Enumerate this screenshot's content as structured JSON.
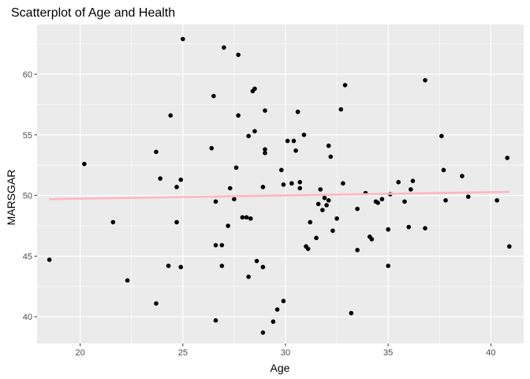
{
  "chart_data": {
    "type": "scatter",
    "title": "Scatterplot of Age and Health",
    "xlabel": "Age",
    "ylabel": "MARSGAR",
    "xlim": [
      17.9,
      41.6
    ],
    "ylim": [
      37.8,
      64.1
    ],
    "x_ticks": [
      20,
      25,
      30,
      35,
      40
    ],
    "y_ticks": [
      40,
      45,
      50,
      55,
      60
    ],
    "x_minor_ticks": [
      17.5,
      22.5,
      27.5,
      32.5,
      37.5
    ],
    "y_minor_ticks": [
      42.5,
      47.5,
      52.5,
      57.5,
      62.5
    ],
    "grid": true,
    "legend": "none",
    "colors": {
      "panel": "#ebebeb",
      "grid": "#ffffff",
      "point": "#000000",
      "trend": "#ffb6c1",
      "tick": "#333333"
    },
    "trend_line": {
      "x": [
        18.5,
        40.9
      ],
      "y": [
        49.7,
        50.3
      ]
    },
    "points": [
      {
        "x": 18.5,
        "y": 44.7
      },
      {
        "x": 20.2,
        "y": 52.6
      },
      {
        "x": 21.6,
        "y": 47.8
      },
      {
        "x": 22.3,
        "y": 43.0
      },
      {
        "x": 23.7,
        "y": 53.6
      },
      {
        "x": 23.7,
        "y": 41.1
      },
      {
        "x": 23.9,
        "y": 51.4
      },
      {
        "x": 24.3,
        "y": 44.2
      },
      {
        "x": 24.4,
        "y": 56.6
      },
      {
        "x": 24.7,
        "y": 50.7
      },
      {
        "x": 24.7,
        "y": 47.8
      },
      {
        "x": 24.9,
        "y": 51.3
      },
      {
        "x": 24.9,
        "y": 44.1
      },
      {
        "x": 25.0,
        "y": 62.9
      },
      {
        "x": 26.4,
        "y": 53.9
      },
      {
        "x": 26.5,
        "y": 58.2
      },
      {
        "x": 26.6,
        "y": 49.5
      },
      {
        "x": 26.6,
        "y": 45.9
      },
      {
        "x": 26.6,
        "y": 39.7
      },
      {
        "x": 26.9,
        "y": 45.9
      },
      {
        "x": 26.9,
        "y": 44.2
      },
      {
        "x": 27.0,
        "y": 62.2
      },
      {
        "x": 27.2,
        "y": 47.5
      },
      {
        "x": 27.3,
        "y": 50.6
      },
      {
        "x": 27.5,
        "y": 49.7
      },
      {
        "x": 27.6,
        "y": 52.3
      },
      {
        "x": 27.7,
        "y": 61.6
      },
      {
        "x": 27.7,
        "y": 56.6
      },
      {
        "x": 27.9,
        "y": 48.2
      },
      {
        "x": 28.1,
        "y": 48.2
      },
      {
        "x": 28.2,
        "y": 54.9
      },
      {
        "x": 28.2,
        "y": 43.3
      },
      {
        "x": 28.3,
        "y": 48.1
      },
      {
        "x": 28.4,
        "y": 58.6
      },
      {
        "x": 28.5,
        "y": 58.8
      },
      {
        "x": 28.5,
        "y": 55.3
      },
      {
        "x": 28.6,
        "y": 44.6
      },
      {
        "x": 28.9,
        "y": 50.7
      },
      {
        "x": 28.9,
        "y": 44.1
      },
      {
        "x": 28.9,
        "y": 38.7
      },
      {
        "x": 29.0,
        "y": 53.8
      },
      {
        "x": 29.0,
        "y": 53.5
      },
      {
        "x": 29.0,
        "y": 57.0
      },
      {
        "x": 29.4,
        "y": 39.6
      },
      {
        "x": 29.6,
        "y": 40.6
      },
      {
        "x": 29.8,
        "y": 52.1
      },
      {
        "x": 29.9,
        "y": 50.9
      },
      {
        "x": 29.9,
        "y": 41.3
      },
      {
        "x": 30.1,
        "y": 54.5
      },
      {
        "x": 30.3,
        "y": 51.0
      },
      {
        "x": 30.4,
        "y": 54.5
      },
      {
        "x": 30.5,
        "y": 53.7
      },
      {
        "x": 30.6,
        "y": 56.9
      },
      {
        "x": 30.7,
        "y": 51.1
      },
      {
        "x": 30.7,
        "y": 50.6
      },
      {
        "x": 30.9,
        "y": 55.0
      },
      {
        "x": 31.0,
        "y": 45.8
      },
      {
        "x": 31.1,
        "y": 45.6
      },
      {
        "x": 31.2,
        "y": 47.8
      },
      {
        "x": 31.5,
        "y": 46.5
      },
      {
        "x": 31.6,
        "y": 49.3
      },
      {
        "x": 31.7,
        "y": 50.5
      },
      {
        "x": 31.8,
        "y": 48.8
      },
      {
        "x": 31.9,
        "y": 49.8
      },
      {
        "x": 32.0,
        "y": 49.2
      },
      {
        "x": 32.1,
        "y": 49.6
      },
      {
        "x": 32.1,
        "y": 54.1
      },
      {
        "x": 32.2,
        "y": 53.2
      },
      {
        "x": 32.3,
        "y": 47.1
      },
      {
        "x": 32.5,
        "y": 48.1
      },
      {
        "x": 32.7,
        "y": 57.1
      },
      {
        "x": 32.8,
        "y": 51.0
      },
      {
        "x": 32.9,
        "y": 59.1
      },
      {
        "x": 33.2,
        "y": 40.3
      },
      {
        "x": 33.5,
        "y": 48.9
      },
      {
        "x": 33.5,
        "y": 45.5
      },
      {
        "x": 33.9,
        "y": 50.2
      },
      {
        "x": 34.1,
        "y": 46.6
      },
      {
        "x": 34.2,
        "y": 46.4
      },
      {
        "x": 34.4,
        "y": 49.5
      },
      {
        "x": 34.5,
        "y": 49.4
      },
      {
        "x": 34.7,
        "y": 49.7
      },
      {
        "x": 35.0,
        "y": 47.2
      },
      {
        "x": 35.0,
        "y": 44.2
      },
      {
        "x": 35.1,
        "y": 50.1
      },
      {
        "x": 35.5,
        "y": 51.1
      },
      {
        "x": 35.8,
        "y": 49.5
      },
      {
        "x": 36.0,
        "y": 47.4
      },
      {
        "x": 36.1,
        "y": 50.5
      },
      {
        "x": 36.2,
        "y": 51.2
      },
      {
        "x": 36.8,
        "y": 59.5
      },
      {
        "x": 36.8,
        "y": 47.3
      },
      {
        "x": 37.6,
        "y": 54.9
      },
      {
        "x": 37.7,
        "y": 52.1
      },
      {
        "x": 37.8,
        "y": 49.6
      },
      {
        "x": 38.6,
        "y": 51.6
      },
      {
        "x": 38.9,
        "y": 49.9
      },
      {
        "x": 40.3,
        "y": 49.6
      },
      {
        "x": 40.8,
        "y": 53.1
      },
      {
        "x": 40.9,
        "y": 45.8
      }
    ]
  }
}
